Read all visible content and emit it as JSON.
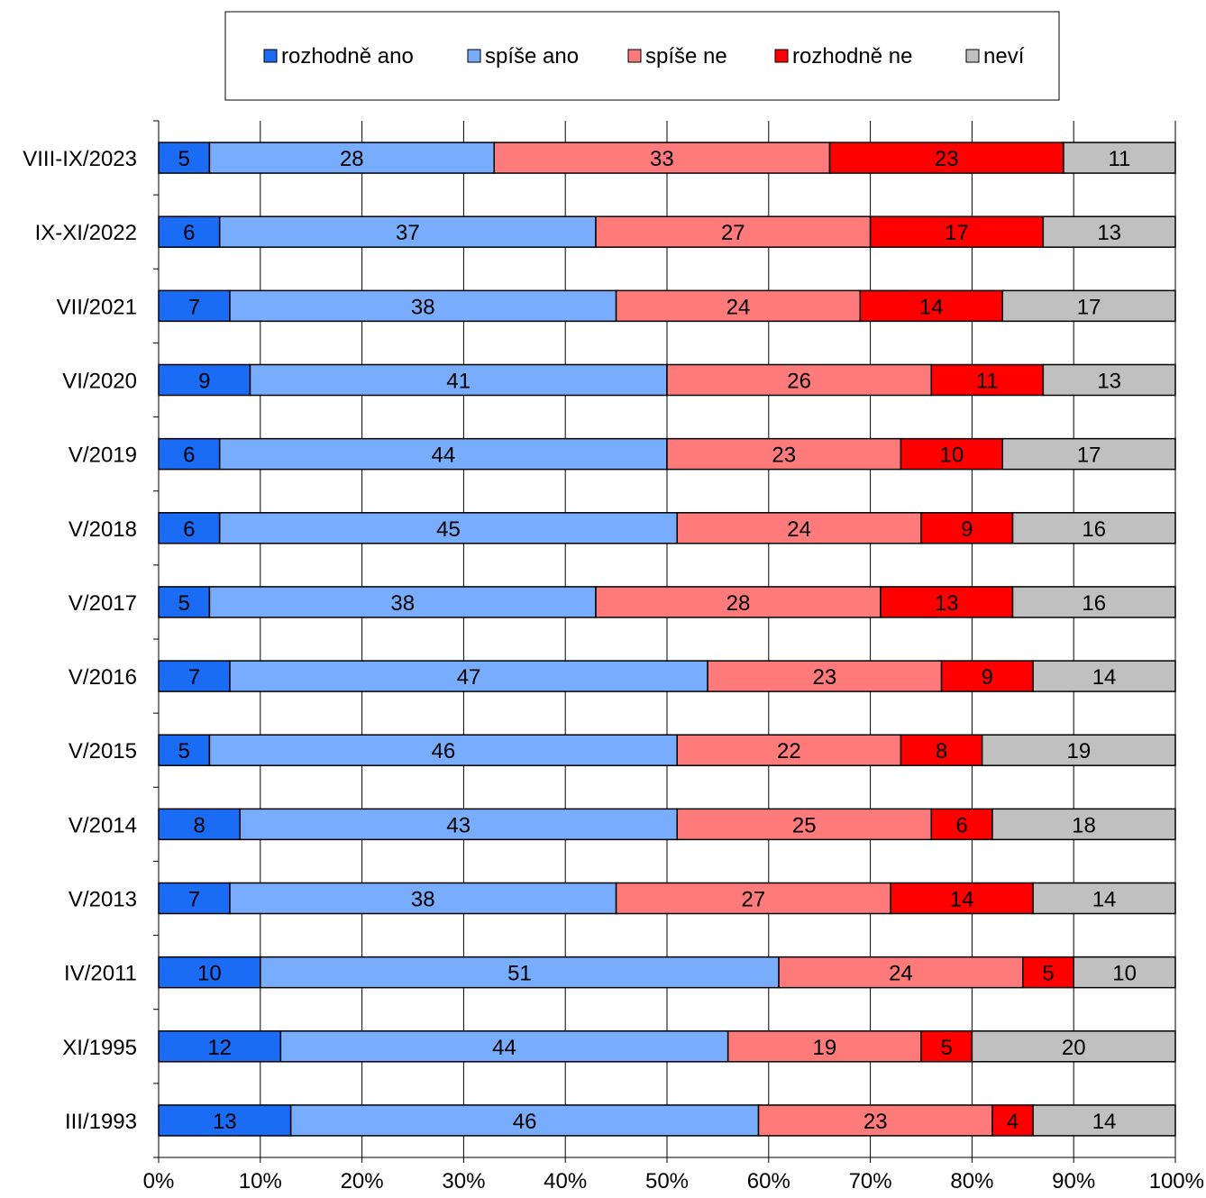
{
  "chart_data": {
    "type": "bar",
    "orientation": "horizontal",
    "stacked": "percent",
    "title": "",
    "xlabel": "",
    "ylabel": "",
    "xlim": [
      0,
      100
    ],
    "x_ticks": [
      "0%",
      "10%",
      "20%",
      "30%",
      "40%",
      "50%",
      "60%",
      "70%",
      "80%",
      "90%",
      "100%"
    ],
    "grid": "vertical",
    "legend_position": "top",
    "categories": [
      "VIII-IX/2023",
      "IX-XI/2022",
      "VII/2021",
      "VI/2020",
      "V/2019",
      "V/2018",
      "V/2017",
      "V/2016",
      "V/2015",
      "V/2014",
      "V/2013",
      "IV/2011",
      "XI/1995",
      "III/1993"
    ],
    "series": [
      {
        "name": "rozhodně ano",
        "color": "#1a6cf5",
        "values": [
          5,
          6,
          7,
          9,
          6,
          6,
          5,
          7,
          5,
          8,
          7,
          10,
          12,
          13
        ]
      },
      {
        "name": "spíše ano",
        "color": "#78acfc",
        "values": [
          28,
          37,
          38,
          41,
          44,
          45,
          38,
          47,
          46,
          43,
          38,
          51,
          44,
          46
        ]
      },
      {
        "name": "spíše ne",
        "color": "#ff7b7b",
        "values": [
          33,
          27,
          24,
          26,
          23,
          24,
          28,
          23,
          22,
          25,
          27,
          24,
          19,
          23
        ]
      },
      {
        "name": "rozhodně ne",
        "color": "#ff0000",
        "values": [
          23,
          17,
          14,
          11,
          10,
          9,
          13,
          9,
          8,
          6,
          14,
          5,
          5,
          4
        ]
      },
      {
        "name": "neví",
        "color": "#c0c0c0",
        "values": [
          11,
          13,
          17,
          13,
          17,
          16,
          16,
          14,
          19,
          18,
          14,
          10,
          20,
          14
        ]
      }
    ]
  }
}
